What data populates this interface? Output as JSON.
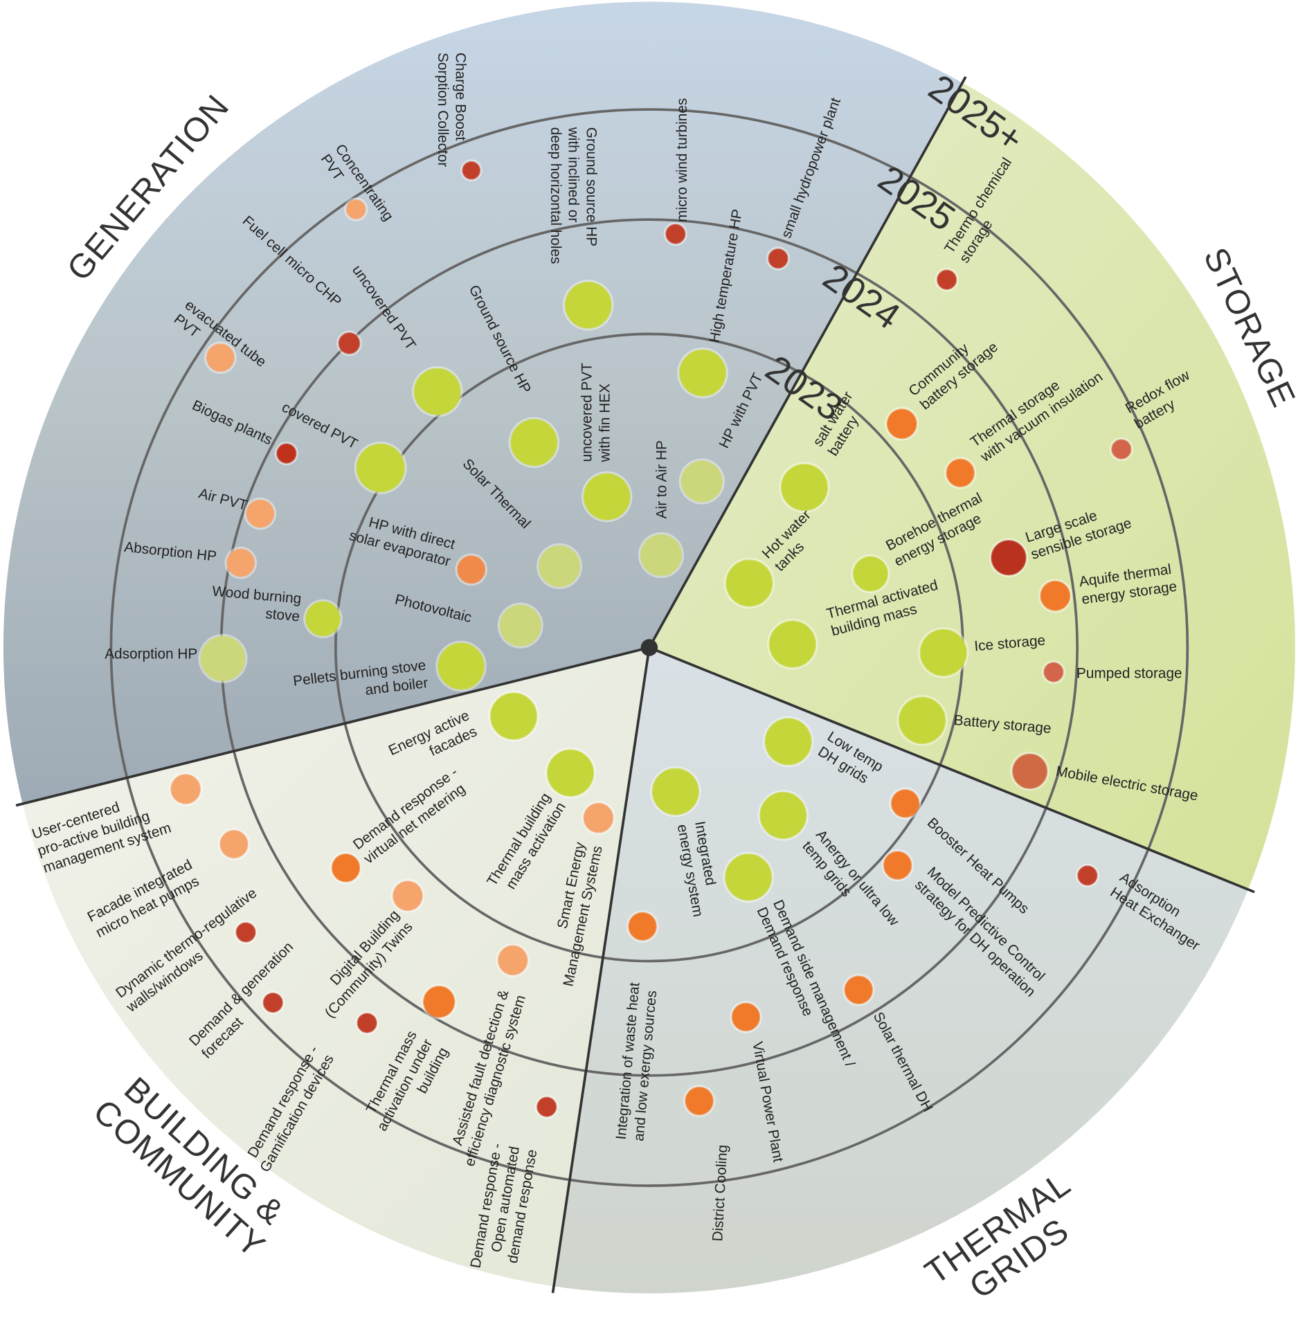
{
  "years": [
    "2023",
    "2024",
    "2025",
    "2025+"
  ],
  "sectors": [
    {
      "title": [
        "GENERATION"
      ],
      "items": [
        {
          "lines": [
            "Charge Boost",
            "Sorption Collector"
          ],
          "color": "#c2402a"
        },
        {
          "lines": [
            "Concentrating",
            "PVT"
          ],
          "color": "#f5a46c"
        },
        {
          "lines": [
            "Ground source HP",
            "with inclined or",
            "deep horizontal holes"
          ],
          "color": "#c5d63a"
        },
        {
          "lines": [
            "micro wind turbines"
          ],
          "color": "#c2402a"
        },
        {
          "lines": [
            "small hydropower plant"
          ],
          "color": "#c2402a"
        },
        {
          "lines": [
            "High temperature HP"
          ],
          "color": "#c5d63a"
        },
        {
          "lines": [
            "HP with PVT"
          ],
          "color": "#cbd77a"
        },
        {
          "lines": [
            "Air to Air HP"
          ],
          "color": "#cbd77a"
        },
        {
          "lines": [
            "uncovered PVT",
            "with fin HEX"
          ],
          "color": "#c5d63a"
        },
        {
          "lines": [
            "Ground source HP"
          ],
          "color": "#c5d63a"
        },
        {
          "lines": [
            "Solar Thermal"
          ],
          "color": "#cbd77a"
        },
        {
          "lines": [
            "Photovoltaic"
          ],
          "color": "#cbd77a"
        },
        {
          "lines": [
            "Pellets burning stove",
            "and boiler"
          ],
          "color": "#c5d63a"
        },
        {
          "lines": [
            "HP with direct",
            "solar evaporator"
          ],
          "color": "#f08a4a"
        },
        {
          "lines": [
            "Wood burning",
            "stove"
          ],
          "color": "#c5d63a"
        },
        {
          "lines": [
            "Adsorption HP"
          ],
          "color": "#cbd77a"
        },
        {
          "lines": [
            "Absorption HP"
          ],
          "color": "#f5a46c"
        },
        {
          "lines": [
            "Air PVT"
          ],
          "color": "#f5a46c"
        },
        {
          "lines": [
            "Biogas plants"
          ],
          "color": "#c0311c"
        },
        {
          "lines": [
            "covered PVT"
          ],
          "color": "#c5d63a"
        },
        {
          "lines": [
            "evacuated tube",
            "PVT"
          ],
          "color": "#f5a46c"
        },
        {
          "lines": [
            "Fuel cell micro CHP"
          ],
          "color": "#c2402a"
        },
        {
          "lines": [
            "uncovered PVT"
          ],
          "color": "#c5d63a"
        }
      ]
    },
    {
      "title": [
        "STORAGE"
      ],
      "items": [
        {
          "lines": [
            "Thermo chemical",
            "storage"
          ],
          "color": "#c2402a"
        },
        {
          "lines": [
            "Community",
            "battery storage"
          ],
          "color": "#f07a2a"
        },
        {
          "lines": [
            "Redox flow",
            "battery"
          ],
          "color": "#d2654a"
        },
        {
          "lines": [
            "Thermal storage",
            "with vacuum insulation"
          ],
          "color": "#f07a2a"
        },
        {
          "lines": [
            "salt water",
            "battery"
          ],
          "color": "#c5d63a"
        },
        {
          "lines": [
            "Hot water",
            "tanks"
          ],
          "color": "#c5d63a"
        },
        {
          "lines": [
            "Borehoe thermal",
            "energy storage"
          ],
          "color": "#c5d63a"
        },
        {
          "lines": [
            "Large scale",
            "sensible storage"
          ],
          "color": "#b8321f"
        },
        {
          "lines": [
            "Aquife thermal",
            "energy storage"
          ],
          "color": "#f07a2a"
        },
        {
          "lines": [
            "Thermal activated",
            "building mass"
          ],
          "color": "#c5d63a"
        },
        {
          "lines": [
            "Ice storage"
          ],
          "color": "#c5d63a"
        },
        {
          "lines": [
            "Pumped storage"
          ],
          "color": "#d2654a"
        },
        {
          "lines": [
            "Battery storage"
          ],
          "color": "#c5d63a"
        },
        {
          "lines": [
            "Mobile electric storage"
          ],
          "color": "#cf6a44"
        }
      ]
    },
    {
      "title": [
        "THERMAL",
        "GRIDS"
      ],
      "items": [
        {
          "lines": [
            "Low temp",
            "DH grids"
          ],
          "color": "#c5d63a"
        },
        {
          "lines": [
            "Booster Heat Pumps"
          ],
          "color": "#f07a2a"
        },
        {
          "lines": [
            "Adsorption",
            "Heat Exchanger"
          ],
          "color": "#c2402a"
        },
        {
          "lines": [
            "Anergy or ultra low",
            "temp grids"
          ],
          "color": "#c5d63a"
        },
        {
          "lines": [
            "Model Predictive Control",
            "strategy for DH operation"
          ],
          "color": "#f07a2a"
        },
        {
          "lines": [
            "Integrated",
            "energy system"
          ],
          "color": "#c5d63a"
        },
        {
          "lines": [
            "Demand side management /",
            "Demand response"
          ],
          "color": "#c5d63a"
        },
        {
          "lines": [
            "Solar thermal DH"
          ],
          "color": "#f07a2a"
        },
        {
          "lines": [
            "Virtual Power Plant"
          ],
          "color": "#f07a2a"
        },
        {
          "lines": [
            "Integration of waste heat",
            "and low exergy sources"
          ],
          "color": "#f07a2a"
        },
        {
          "lines": [
            "District Cooling"
          ],
          "color": "#f07a2a"
        }
      ]
    },
    {
      "title": [
        "BUILDING &",
        "COMMUNITY"
      ],
      "items": [
        {
          "lines": [
            "Energy active",
            "facades"
          ],
          "color": "#c5d63a"
        },
        {
          "lines": [
            "Demand response -",
            "virtual net metering"
          ],
          "color": "#f07a2a"
        },
        {
          "lines": [
            "Thermal building",
            "mass activation"
          ],
          "color": "#c5d63a"
        },
        {
          "lines": [
            "Smart Energy",
            "Management Systems"
          ],
          "color": "#f5a46c"
        },
        {
          "lines": [
            "Digital Building",
            "(Community) Twins"
          ],
          "color": "#f5a46c"
        },
        {
          "lines": [
            "Assisted fault detection &",
            "efficiency diagnostic system"
          ],
          "color": "#f5a46c"
        },
        {
          "lines": [
            "Thermal mass",
            "activation under",
            "building"
          ],
          "color": "#f07a2a"
        },
        {
          "lines": [
            "Demand response -",
            "Open automated",
            "demand response"
          ],
          "color": "#c2402a"
        },
        {
          "lines": [
            "Demand response -",
            "Gamification devices"
          ],
          "color": "#c2402a"
        },
        {
          "lines": [
            "Demand & generation",
            "forecast"
          ],
          "color": "#c2402a"
        },
        {
          "lines": [
            "Dynamic thermo-regulative",
            "walls/windows"
          ],
          "color": "#c2402a"
        },
        {
          "lines": [
            "Facade integrated",
            "micro heat pumps"
          ],
          "color": "#f5a46c"
        },
        {
          "lines": [
            "User-centered",
            "pro-active building",
            "management system"
          ],
          "color": "#f5a46c"
        }
      ]
    }
  ]
}
